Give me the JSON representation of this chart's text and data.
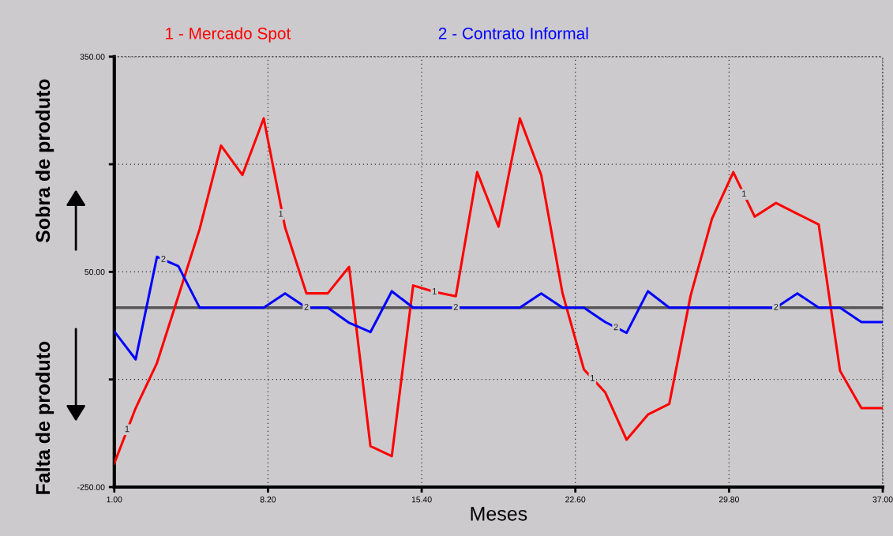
{
  "chart_data": {
    "type": "line",
    "xlabel": "Meses",
    "x": [
      1,
      2,
      3,
      4,
      5,
      6,
      7,
      8,
      9,
      10,
      11,
      12,
      13,
      14,
      15,
      16,
      17,
      18,
      19,
      20,
      21,
      22,
      23,
      24,
      25,
      26,
      27,
      28,
      29,
      30,
      31,
      32,
      33,
      34,
      35,
      36,
      37
    ],
    "series": [
      {
        "name": "1 - Mercado Spot",
        "color": "#ff0000",
        "values": [
          -217,
          -140,
          -77,
          16,
          110,
          226,
          185,
          264,
          112,
          20,
          20,
          57,
          -193,
          -207,
          31,
          22,
          16,
          189,
          113,
          264,
          185,
          20,
          -86,
          -118,
          -184,
          -149,
          -134,
          17,
          124,
          189,
          127,
          146,
          131,
          116,
          -88,
          -140,
          -140
        ]
      },
      {
        "name": "2 - Contrato Informal",
        "color": "#0000ff",
        "values": [
          -33,
          -72,
          71,
          58,
          0,
          0,
          0,
          0,
          20,
          0,
          0,
          -21,
          -34,
          23,
          0,
          0,
          0,
          0,
          0,
          0,
          20,
          0,
          0,
          -20,
          -35,
          23,
          0,
          0,
          0,
          0,
          0,
          0,
          20,
          0,
          0,
          -20,
          -20
        ]
      }
    ],
    "xlim": [
      1,
      37
    ],
    "xticks": [
      {
        "value": 1,
        "label": "1.00"
      },
      {
        "value": 8.2,
        "label": "8.20"
      },
      {
        "value": 15.4,
        "label": "15.40"
      },
      {
        "value": 22.6,
        "label": "22.60"
      },
      {
        "value": 29.8,
        "label": "29.80"
      },
      {
        "value": 37,
        "label": "37.00"
      }
    ],
    "ylim": [
      -250,
      350
    ],
    "yticks": [
      {
        "value": -250,
        "label": "-250.00"
      },
      {
        "value": -100,
        "label": null
      },
      {
        "value": 50,
        "label": "50.00"
      },
      {
        "value": 200,
        "label": null
      },
      {
        "value": 350,
        "label": "350.00"
      }
    ],
    "ref_lines": [
      {
        "axis": "y",
        "value": 0,
        "color": "#555555"
      }
    ],
    "grid": true,
    "legend": "top",
    "line_style": "solid",
    "marker": "none",
    "annotations": [
      "Sobra de produto",
      "Falta de produto",
      {
        "text": "1",
        "x": 1.6,
        "y": -170
      },
      {
        "text": "1",
        "x": 8.8,
        "y": 130
      },
      {
        "text": "1",
        "x": 16,
        "y": 22
      },
      {
        "text": "1",
        "x": 23.4,
        "y": -99
      },
      {
        "text": "1",
        "x": 30.5,
        "y": 158
      },
      {
        "text": "2",
        "x": 3.3,
        "y": 67
      },
      {
        "text": "2",
        "x": 10,
        "y": 0
      },
      {
        "text": "2",
        "x": 17,
        "y": 0
      },
      {
        "text": "2",
        "x": 24.5,
        "y": -28
      },
      {
        "text": "2",
        "x": 32,
        "y": 0
      }
    ]
  }
}
